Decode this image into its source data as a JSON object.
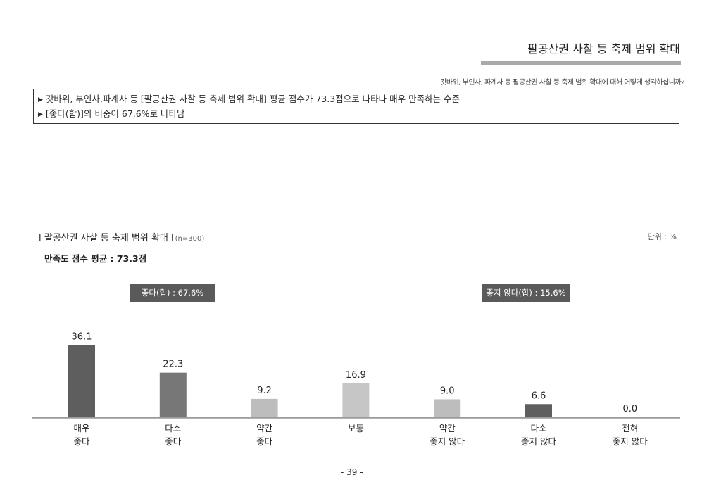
{
  "header": {
    "title": "팔공산권 사찰 등 축제 범위 확대",
    "question": "갓바위, 부인사, 파계사 등 팔공산권 사찰 등 축제 범위 확대에 대해 어떻게 생각하십니까?"
  },
  "summary": {
    "line1": "갓바위, 부인사,파계사 등 [팔공산권 사찰 등 축제 범위 확대] 평균 점수가 73.3점으로 나타나 매우 만족하는 수준",
    "line2": "[좋다(합)]의 비중이 67.6%로 나타남"
  },
  "chart_header": {
    "title": "l 팔공산권 사찰 등 축제 범위 확대 l",
    "n": "(n=300)",
    "unit": "단위 : %",
    "average": "만족도 점수 평균 : 73.3점"
  },
  "groups": {
    "positive": "좋다(합) : 67.6%",
    "negative": "좋지 않다(합) : 15.6%"
  },
  "chart_data": {
    "type": "bar",
    "categories": [
      [
        "매우",
        "좋다"
      ],
      [
        "다소",
        "좋다"
      ],
      [
        "약간",
        "좋다"
      ],
      [
        "보통"
      ],
      [
        "약간",
        "좋지 않다"
      ],
      [
        "다소",
        "좋지 않다"
      ],
      [
        "전혀",
        "좋지 않다"
      ]
    ],
    "values": [
      36.1,
      22.3,
      9.2,
      16.9,
      9.0,
      6.6,
      0.0
    ],
    "value_labels": [
      "36.1",
      "22.3",
      "9.2",
      "16.9",
      "9.0",
      "6.6",
      "0.0"
    ],
    "colors": [
      "#5e5e5e",
      "#777777",
      "#bdbdbd",
      "#c6c6c6",
      "#bdbdbd",
      "#5e5e5e",
      "#5e5e5e"
    ],
    "ylim": [
      0,
      40
    ]
  },
  "page_number": "- 39 -"
}
